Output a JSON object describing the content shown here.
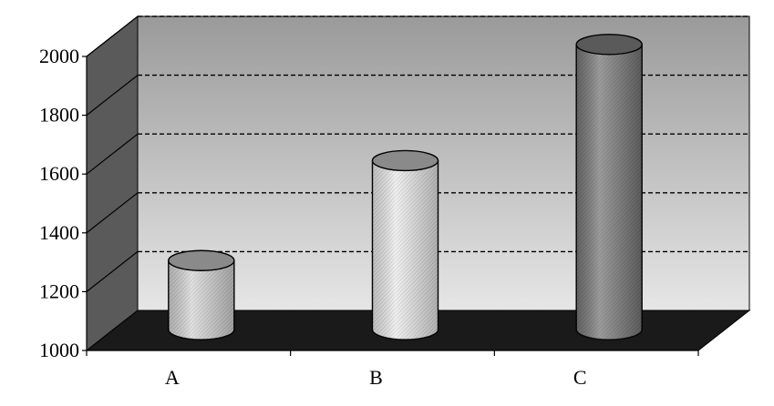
{
  "chart_data": {
    "type": "bar",
    "style": "3d-cylinder",
    "categories": [
      "A",
      "B",
      "C"
    ],
    "values": [
      1250,
      1590,
      1985
    ],
    "title": "",
    "xlabel": "",
    "ylabel": "",
    "ylim": [
      1000,
      2000
    ],
    "yticks": [
      "1000",
      "1200",
      "1400",
      "1600",
      "1800",
      "2000"
    ],
    "grid": true,
    "legend": "none",
    "colors": {
      "wall_top": "#9a9a9a",
      "wall_bottom": "#e6e6e6",
      "side_wall": "#5a5a5a",
      "floor": "#1a1a1a",
      "bars": [
        "#d6d6d6",
        "#ebebeb",
        "#7a7a7a"
      ],
      "bar_tops": [
        "#8a8a8a",
        "#8a8a8a",
        "#5a5a5a"
      ]
    }
  }
}
